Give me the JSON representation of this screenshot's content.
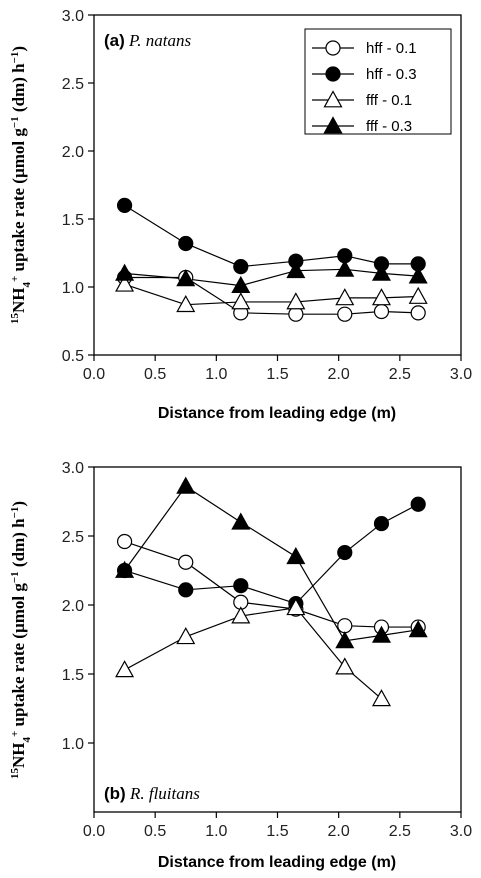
{
  "chart_data": [
    {
      "type": "line",
      "panel_label": "(a)",
      "panel_species": "P. natans",
      "xlabel": "Distance from leading edge (m)",
      "ylabel_parts": [
        "15",
        "NH",
        "4",
        "+",
        " uptake rate (µmol g",
        "−1",
        " (dm) h",
        "−1",
        ")"
      ],
      "xlim": [
        0.0,
        3.0
      ],
      "ylim": [
        0.5,
        3.0
      ],
      "xticks": [
        "0.0",
        "0.5",
        "1.0",
        "1.5",
        "2.0",
        "2.5",
        "3.0"
      ],
      "yticks": [
        "0.5",
        "1.0",
        "1.5",
        "2.0",
        "2.5",
        "3.0"
      ],
      "legend_position": "top-right",
      "series": [
        {
          "name": "hff - 0.1",
          "marker": "circle-open",
          "x": [
            0.25,
            0.75,
            1.2,
            1.65,
            2.05,
            2.35,
            2.65
          ],
          "y": [
            1.07,
            1.07,
            0.81,
            0.8,
            0.8,
            0.82,
            0.81
          ]
        },
        {
          "name": "hff - 0.3",
          "marker": "circle-filled",
          "x": [
            0.25,
            0.75,
            1.2,
            1.65,
            2.05,
            2.35,
            2.65
          ],
          "y": [
            1.6,
            1.32,
            1.15,
            1.19,
            1.23,
            1.17,
            1.17
          ]
        },
        {
          "name": "fff - 0.1",
          "marker": "triangle-open",
          "x": [
            0.25,
            0.75,
            1.2,
            1.65,
            2.05,
            2.35,
            2.65
          ],
          "y": [
            1.02,
            0.87,
            0.89,
            0.89,
            0.92,
            0.92,
            0.93
          ]
        },
        {
          "name": "fff - 0.3",
          "marker": "triangle-filled",
          "x": [
            0.25,
            0.75,
            1.2,
            1.65,
            2.05,
            2.35,
            2.65
          ],
          "y": [
            1.1,
            1.06,
            1.01,
            1.12,
            1.13,
            1.1,
            1.08
          ]
        }
      ]
    },
    {
      "type": "line",
      "panel_label": "(b)",
      "panel_species": "R. fluitans",
      "xlabel": "Distance from leading edge (m)",
      "ylabel_parts": [
        "15",
        "NH",
        "4",
        "+",
        " uptake rate (µmol g",
        "−1",
        " (dm) h",
        "−1",
        ")"
      ],
      "xlim": [
        0.0,
        3.0
      ],
      "ylim": [
        0.5,
        3.0
      ],
      "xticks": [
        "0.0",
        "0.5",
        "1.0",
        "1.5",
        "2.0",
        "2.5",
        "3.0"
      ],
      "yticks": [
        "1.0",
        "1.5",
        "2.0",
        "2.5",
        "3.0"
      ],
      "series": [
        {
          "name": "hff - 0.1",
          "marker": "circle-open",
          "x": [
            0.25,
            0.75,
            1.2,
            1.65,
            2.05,
            2.35,
            2.65
          ],
          "y": [
            2.46,
            2.31,
            2.02,
            1.97,
            1.85,
            1.84,
            1.84
          ]
        },
        {
          "name": "hff - 0.3",
          "marker": "circle-filled",
          "x": [
            0.25,
            0.75,
            1.2,
            1.65,
            2.05,
            2.35,
            2.65
          ],
          "y": [
            2.25,
            2.11,
            2.14,
            2.01,
            2.38,
            2.59,
            2.73
          ]
        },
        {
          "name": "fff - 0.1",
          "marker": "triangle-open",
          "x": [
            0.25,
            0.75,
            1.2,
            1.65,
            2.05,
            2.35
          ],
          "y": [
            1.53,
            1.77,
            1.92,
            1.98,
            1.55,
            1.32
          ]
        },
        {
          "name": "fff - 0.3",
          "marker": "triangle-filled",
          "x": [
            0.25,
            0.75,
            1.2,
            1.65,
            2.05,
            2.35,
            2.65
          ],
          "y": [
            2.25,
            2.86,
            2.6,
            2.35,
            1.74,
            1.78,
            1.82
          ]
        }
      ]
    }
  ]
}
